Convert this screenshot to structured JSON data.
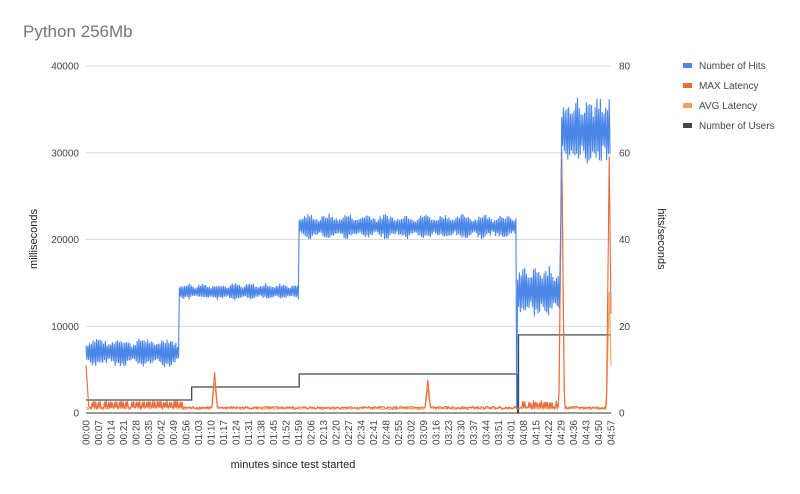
{
  "chart_data": {
    "type": "line",
    "title": "Python 256Mb",
    "xlabel": "minutes since test started",
    "ylabel_left": "milliseconds",
    "ylabel_right": "hits/seconds",
    "ylim_left": [
      0,
      40000
    ],
    "ylim_right": [
      0,
      80
    ],
    "yticks_left": [
      "0",
      "10000",
      "20000",
      "30000",
      "40000"
    ],
    "yticks_right": [
      "0",
      "20",
      "40",
      "60",
      "80"
    ],
    "x_range_seconds": [
      0,
      298
    ],
    "x_ticks": [
      "00:00",
      "00:07",
      "00:14",
      "00:21",
      "00:28",
      "00:35",
      "00:42",
      "00:49",
      "00:56",
      "01:03",
      "01:10",
      "01:17",
      "01:24",
      "01:31",
      "01:38",
      "01:45",
      "01:52",
      "01:59",
      "02:06",
      "02:13",
      "02:20",
      "02:27",
      "02:34",
      "02:41",
      "02:48",
      "02:55",
      "03:02",
      "03:09",
      "03:16",
      "03:23",
      "03:30",
      "03:37",
      "03:44",
      "03:51",
      "04:01",
      "04:08",
      "04:15",
      "04:22",
      "04:29",
      "04:36",
      "04:43",
      "04:50",
      "04:57"
    ],
    "grid": true,
    "legend_position": "right",
    "series": [
      {
        "name": "Number of Hits",
        "axis": "right",
        "color": "#4a86e8",
        "segments": [
          {
            "t0": 0,
            "t1": 53,
            "base": 14,
            "amp": 3.5,
            "period": 1.0,
            "env_period": 13
          },
          {
            "t0": 53,
            "t1": 121,
            "base": 28,
            "amp": 2.0,
            "period": 1.0,
            "env_period": 9
          },
          {
            "t0": 121,
            "t1": 245,
            "base": 43,
            "amp": 3.0,
            "period": 1.0,
            "env_period": 11
          },
          {
            "t0": 245,
            "t1": 270,
            "base": 28,
            "amp": 6.0,
            "period": 1.0,
            "env_period": 7
          },
          {
            "t0": 270,
            "t1": 298,
            "base": 65,
            "amp": 8.0,
            "period": 1.0,
            "env_period": 6
          }
        ],
        "spikes": [
          {
            "t": 244.5,
            "value": 1
          },
          {
            "t": 269.5,
            "value": 44
          }
        ]
      },
      {
        "name": "MAX Latency",
        "axis": "left",
        "color": "#e66b3f",
        "baseline": 500,
        "spikes": [
          {
            "t": 0,
            "value": 5500
          },
          {
            "t": 73,
            "value": 4700
          },
          {
            "t": 194,
            "value": 3800
          },
          {
            "t": 270,
            "value": 30300
          },
          {
            "t": 297,
            "value": 29600
          }
        ]
      },
      {
        "name": "AVG Latency",
        "axis": "left",
        "color": "#f4a156",
        "baseline": 400,
        "spikes": [
          {
            "t": 73,
            "value": 3500
          },
          {
            "t": 194,
            "value": 2800
          },
          {
            "t": 270,
            "value": 29800
          },
          {
            "t": 297,
            "value": 14000
          }
        ]
      },
      {
        "name": "Number of Users",
        "axis": "right",
        "color": "#3c4a4f",
        "steps": [
          {
            "t0": 0,
            "t1": 60,
            "value": 3
          },
          {
            "t0": 60,
            "t1": 121,
            "value": 6
          },
          {
            "t0": 121,
            "t1": 245,
            "value": 9
          },
          {
            "t0": 245,
            "t1": 245.5,
            "value": 0
          },
          {
            "t0": 245.5,
            "t1": 298,
            "value": 18
          }
        ]
      }
    ]
  }
}
